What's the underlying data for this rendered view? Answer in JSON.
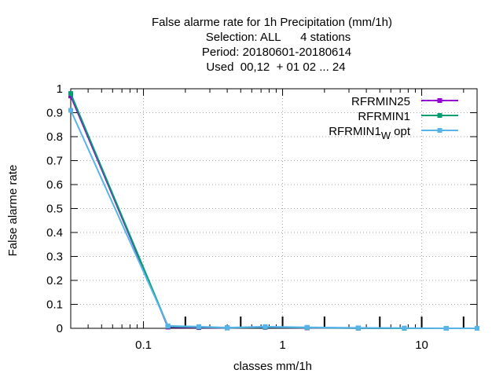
{
  "chart_data": {
    "type": "line",
    "title_lines": [
      "False alarme rate  for 1h Precipitation (mm/1h)",
      "Selection: ALL      4 stations",
      "Period: 20180601-20180614",
      "Used  00,12  + 01 02 ... 24"
    ],
    "xlabel": "classes mm/1h",
    "ylabel": "False alarme rate",
    "x_scale": "log",
    "xlim": [
      0.03,
      25
    ],
    "ylim": [
      0,
      1
    ],
    "grid": true,
    "legend_position": "top-right",
    "x_ticks": [
      {
        "value": 0.1,
        "label": "0.1"
      },
      {
        "value": 1,
        "label": "1"
      },
      {
        "value": 10,
        "label": "10"
      }
    ],
    "y_ticks": [
      {
        "value": 0,
        "label": "0"
      },
      {
        "value": 0.1,
        "label": "0.1"
      },
      {
        "value": 0.2,
        "label": "0.2"
      },
      {
        "value": 0.3,
        "label": "0.3"
      },
      {
        "value": 0.4,
        "label": "0.4"
      },
      {
        "value": 0.5,
        "label": "0.5"
      },
      {
        "value": 0.6,
        "label": "0.6"
      },
      {
        "value": 0.7,
        "label": "0.7"
      },
      {
        "value": 0.8,
        "label": "0.8"
      },
      {
        "value": 0.9,
        "label": "0.9"
      },
      {
        "value": 1,
        "label": "1"
      }
    ],
    "class_thresholds": [
      0.2,
      0.5,
      1,
      2,
      5,
      10,
      20
    ],
    "series": [
      {
        "name": "RFRMIN25",
        "color": "#9400d3",
        "x": [
          0.03,
          0.15,
          0.25,
          0.4,
          0.75,
          1.5,
          3.5,
          7.5,
          15,
          25
        ],
        "y": [
          0.97,
          0.005,
          0.003,
          0.002,
          0.004,
          0.002,
          0.001,
          0,
          0,
          0
        ]
      },
      {
        "name": "RFRMIN1",
        "color": "#009e73",
        "x": [
          0.03,
          0.15,
          0.25,
          0.4,
          0.75,
          1.5,
          3.5,
          7.5,
          15,
          25
        ],
        "y": [
          0.98,
          0.008,
          0.005,
          0.002,
          0.005,
          0.003,
          0.001,
          0,
          0,
          0
        ]
      },
      {
        "name_main": "RFRMIN1",
        "name_sub": "W",
        "name_tail": "opt",
        "color": "#56b4e9",
        "x": [
          0.03,
          0.15,
          0.25,
          0.4,
          0.75,
          1.5,
          3.5,
          7.5,
          15,
          25
        ],
        "y": [
          0.91,
          0.01,
          0.007,
          0.003,
          0.007,
          0.004,
          0.002,
          0.001,
          0,
          0
        ]
      }
    ]
  }
}
